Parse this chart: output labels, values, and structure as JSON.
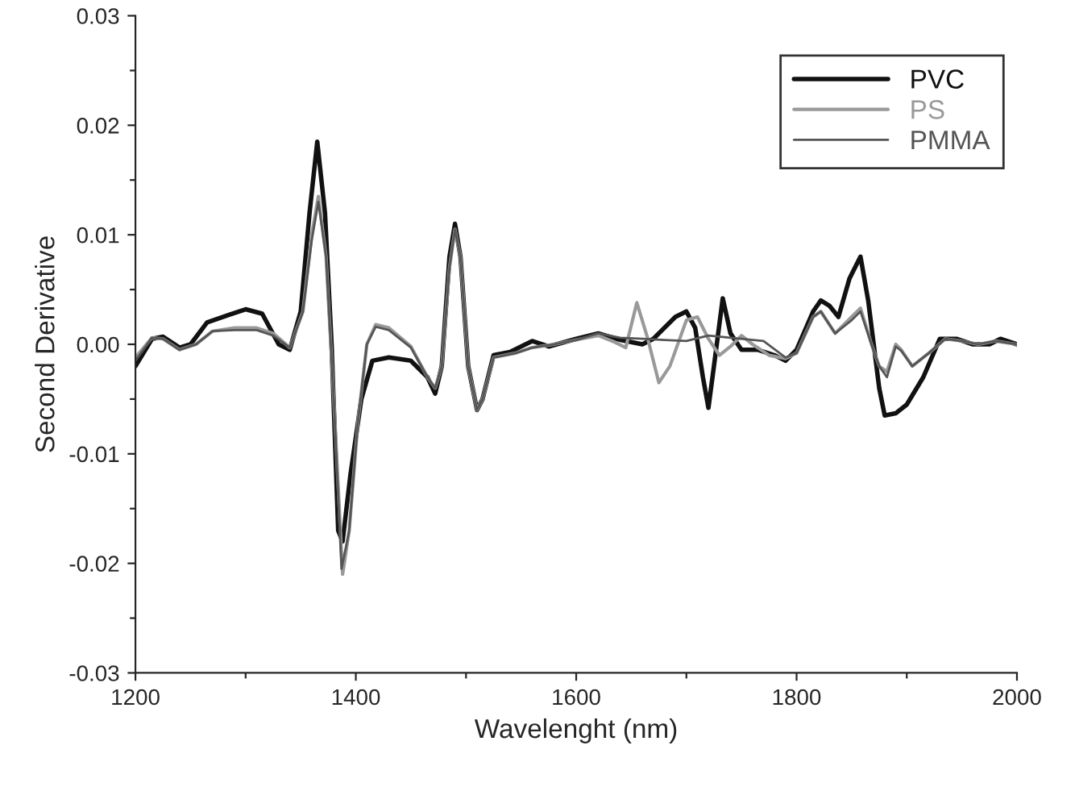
{
  "chart_data": {
    "type": "line",
    "xlabel": "Wavelenght (nm)",
    "ylabel": "Second Derivative",
    "xlim": [
      1200,
      2000
    ],
    "xticks": [
      1200,
      {
        "value": 1300,
        "label": null
      },
      1400,
      {
        "value": 1500,
        "label": null
      },
      1600,
      {
        "value": 1700,
        "label": null
      },
      1800,
      {
        "value": 1900,
        "label": null
      },
      2000
    ],
    "ylim": [
      -0.03,
      0.03
    ],
    "yticks": [
      {
        "value": -0.03,
        "label": "-0.03"
      },
      {
        "value": -0.025,
        "label": null
      },
      {
        "value": -0.02,
        "label": "-0.02"
      },
      {
        "value": -0.015,
        "label": null
      },
      {
        "value": -0.01,
        "label": "-0.01"
      },
      {
        "value": -0.005,
        "label": null
      },
      {
        "value": 0,
        "label": "0.00"
      },
      {
        "value": 0.005,
        "label": null
      },
      {
        "value": 0.01,
        "label": "0.01"
      },
      {
        "value": 0.015,
        "label": null
      },
      {
        "value": 0.02,
        "label": "0.02"
      },
      {
        "value": 0.025,
        "label": null
      },
      {
        "value": 0.03,
        "label": "0.03"
      }
    ],
    "grid": false,
    "legend": "top right",
    "marker": "none",
    "line_style": "solid",
    "series": [
      {
        "name": "PVC",
        "color": "#111111",
        "x": [
          1200,
          1215,
          1225,
          1240,
          1250,
          1265,
          1285,
          1300,
          1315,
          1330,
          1340,
          1350,
          1358,
          1365,
          1372,
          1378,
          1384,
          1388,
          1395,
          1405,
          1415,
          1430,
          1450,
          1465,
          1472,
          1478,
          1485,
          1490,
          1495,
          1502,
          1510,
          1515,
          1525,
          1540,
          1560,
          1575,
          1600,
          1620,
          1640,
          1660,
          1670,
          1690,
          1700,
          1708,
          1715,
          1720,
          1725,
          1733,
          1740,
          1750,
          1765,
          1780,
          1790,
          1800,
          1815,
          1822,
          1830,
          1838,
          1848,
          1858,
          1865,
          1875,
          1880,
          1890,
          1900,
          1915,
          1930,
          1945,
          1960,
          1975,
          1985,
          2000
        ],
        "values": [
          -0.002,
          0.0005,
          0.0007,
          -0.0003,
          0.0,
          0.002,
          0.0027,
          0.0032,
          0.0028,
          0.0,
          -0.0005,
          0.003,
          0.012,
          0.0185,
          0.012,
          0.0,
          -0.017,
          -0.018,
          -0.012,
          -0.005,
          -0.0015,
          -0.0012,
          -0.0015,
          -0.003,
          -0.0045,
          -0.002,
          0.008,
          0.011,
          0.008,
          -0.002,
          -0.006,
          -0.005,
          -0.001,
          -0.0007,
          0.0003,
          -0.0002,
          0.0005,
          0.001,
          0.0004,
          0.0,
          0.0005,
          0.0025,
          0.003,
          0.0015,
          -0.003,
          -0.0058,
          -0.002,
          0.0042,
          0.001,
          -0.0005,
          -0.0005,
          -0.001,
          -0.0015,
          -0.0005,
          0.003,
          0.004,
          0.0035,
          0.0025,
          0.006,
          0.008,
          0.004,
          -0.004,
          -0.0065,
          -0.0063,
          -0.0055,
          -0.003,
          0.0005,
          0.0005,
          0.0,
          0.0,
          0.0005,
          0.0
        ]
      },
      {
        "name": "PS",
        "color": "#999999",
        "x": [
          1200,
          1215,
          1225,
          1240,
          1255,
          1270,
          1290,
          1310,
          1325,
          1340,
          1352,
          1360,
          1366,
          1373,
          1380,
          1388,
          1394,
          1402,
          1410,
          1418,
          1430,
          1450,
          1465,
          1472,
          1478,
          1485,
          1490,
          1495,
          1502,
          1510,
          1515,
          1525,
          1545,
          1560,
          1580,
          1600,
          1620,
          1635,
          1645,
          1655,
          1665,
          1675,
          1685,
          1700,
          1710,
          1720,
          1730,
          1740,
          1750,
          1760,
          1775,
          1790,
          1800,
          1815,
          1822,
          1835,
          1850,
          1858,
          1868,
          1875,
          1882,
          1890,
          1895,
          1905,
          1920,
          1935,
          1950,
          1965,
          1980,
          2000
        ],
        "values": [
          -0.0012,
          0.0006,
          0.0005,
          -0.0005,
          0.0,
          0.0012,
          0.0015,
          0.0015,
          0.001,
          -0.0003,
          0.003,
          0.01,
          0.0135,
          0.008,
          -0.005,
          -0.021,
          -0.017,
          -0.007,
          0.0,
          0.0018,
          0.0015,
          -0.0002,
          -0.003,
          -0.004,
          -0.002,
          0.007,
          0.0105,
          0.008,
          -0.002,
          -0.006,
          -0.005,
          -0.0012,
          -0.0008,
          -0.0003,
          0.0,
          0.0004,
          0.0008,
          0.0002,
          -0.0003,
          0.0038,
          0.0005,
          -0.0035,
          -0.002,
          0.0022,
          0.0025,
          0.0005,
          -0.001,
          -0.0002,
          0.0008,
          0.0,
          -0.001,
          -0.0013,
          -0.0008,
          0.0025,
          0.003,
          0.001,
          0.0025,
          0.0033,
          0.0,
          -0.002,
          -0.0025,
          0.0,
          -0.0005,
          -0.002,
          -0.0008,
          0.0005,
          0.0003,
          0.0,
          0.0003,
          0.0
        ]
      },
      {
        "name": "PMMA",
        "color": "#555555",
        "x": [
          1200,
          1215,
          1225,
          1240,
          1255,
          1270,
          1290,
          1310,
          1325,
          1340,
          1352,
          1360,
          1366,
          1373,
          1380,
          1387,
          1394,
          1402,
          1410,
          1418,
          1430,
          1450,
          1465,
          1472,
          1478,
          1485,
          1490,
          1495,
          1502,
          1510,
          1515,
          1525,
          1545,
          1560,
          1580,
          1600,
          1620,
          1640,
          1660,
          1680,
          1700,
          1720,
          1740,
          1770,
          1790,
          1800,
          1815,
          1822,
          1835,
          1850,
          1858,
          1868,
          1875,
          1882,
          1890,
          1895,
          1905,
          1920,
          1935,
          1950,
          1965,
          1980,
          2000
        ],
        "values": [
          -0.0015,
          0.0006,
          0.0005,
          -0.0005,
          0.0,
          0.0012,
          0.0013,
          0.0013,
          0.0008,
          -0.0003,
          0.003,
          0.0095,
          0.013,
          0.008,
          -0.005,
          -0.0205,
          -0.017,
          -0.007,
          0.0,
          0.0016,
          0.0013,
          -0.0003,
          -0.003,
          -0.004,
          -0.002,
          0.007,
          0.0105,
          0.008,
          -0.002,
          -0.006,
          -0.005,
          -0.0012,
          -0.0008,
          -0.0003,
          0.0,
          0.0004,
          0.001,
          0.0006,
          0.0005,
          0.0004,
          0.0003,
          0.0008,
          0.0006,
          0.0003,
          -0.0012,
          -0.0008,
          0.0025,
          0.003,
          0.001,
          0.0022,
          0.003,
          0.0,
          -0.002,
          -0.003,
          -0.0002,
          -0.0006,
          -0.002,
          -0.0008,
          0.0005,
          0.0003,
          0.0,
          0.0003,
          0.0
        ]
      }
    ]
  }
}
